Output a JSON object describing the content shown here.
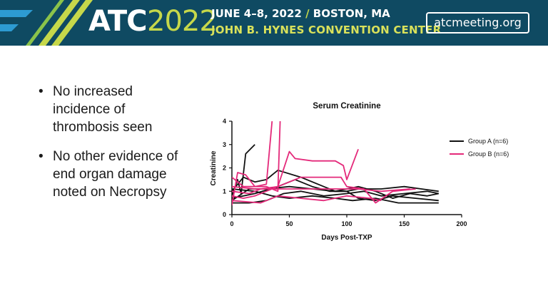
{
  "header": {
    "logo_main": "ATC",
    "logo_year": "2022",
    "dates": "JUNE 4–8, 2022",
    "separator": "/",
    "city": "BOSTON, MA",
    "venue": "JOHN B. HYNES CONVENTION CENTER",
    "url": "atcmeeting.org",
    "colors": {
      "banner": "#0f4a62",
      "accent": "#c6d84a",
      "stripe": "#2d9bd2"
    }
  },
  "bullets": [
    {
      "text": "No increased incidence of thrombosis seen"
    },
    {
      "text": "No other evidence of end organ damage noted on Necropsy"
    }
  ],
  "chart_data": {
    "type": "line",
    "title": "Serum Creatinine",
    "xlabel": "Days Post-TXP",
    "ylabel": "Creatinine",
    "xlim": [
      0,
      200
    ],
    "ylim": [
      0,
      4
    ],
    "xticks": [
      "0",
      "50",
      "100",
      "150",
      "200"
    ],
    "yticks": [
      "0",
      "1",
      "2",
      "3",
      "4"
    ],
    "legend_position": "right",
    "series": [
      {
        "name": "Group A (n=6)",
        "color": "#111111",
        "lines": [
          [
            [
              0,
              0.8
            ],
            [
              5,
              1.5
            ],
            [
              8,
              0.9
            ],
            [
              12,
              2.6
            ],
            [
              20,
              3.0
            ]
          ],
          [
            [
              0,
              1.0
            ],
            [
              10,
              1.6
            ],
            [
              20,
              1.4
            ],
            [
              30,
              1.5
            ],
            [
              40,
              1.9
            ],
            [
              60,
              1.6
            ],
            [
              75,
              1.3
            ],
            [
              90,
              1.0
            ],
            [
              100,
              1.0
            ],
            [
              110,
              1.1
            ],
            [
              130,
              1.1
            ],
            [
              150,
              1.2
            ],
            [
              165,
              1.1
            ],
            [
              180,
              1.0
            ]
          ],
          [
            [
              0,
              0.7
            ],
            [
              20,
              0.9
            ],
            [
              40,
              1.2
            ],
            [
              55,
              1.5
            ],
            [
              70,
              1.2
            ],
            [
              85,
              1.0
            ],
            [
              100,
              1.0
            ],
            [
              110,
              0.7
            ],
            [
              125,
              0.6
            ],
            [
              140,
              0.8
            ],
            [
              160,
              0.7
            ],
            [
              180,
              0.6
            ]
          ],
          [
            [
              0,
              0.5
            ],
            [
              15,
              0.5
            ],
            [
              30,
              0.6
            ],
            [
              45,
              0.9
            ],
            [
              60,
              1.0
            ],
            [
              80,
              0.8
            ],
            [
              100,
              0.9
            ],
            [
              115,
              1.0
            ],
            [
              130,
              0.8
            ],
            [
              150,
              0.9
            ],
            [
              170,
              1.0
            ],
            [
              180,
              0.9
            ]
          ],
          [
            [
              0,
              1.1
            ],
            [
              20,
              1.0
            ],
            [
              35,
              0.8
            ],
            [
              50,
              0.7
            ],
            [
              70,
              0.8
            ],
            [
              90,
              0.7
            ],
            [
              105,
              0.6
            ],
            [
              125,
              0.7
            ],
            [
              145,
              0.5
            ],
            [
              160,
              0.5
            ],
            [
              180,
              0.5
            ]
          ],
          [
            [
              0,
              0.6
            ],
            [
              15,
              1.1
            ],
            [
              30,
              1.1
            ],
            [
              50,
              1.2
            ],
            [
              70,
              1.1
            ],
            [
              90,
              1.0
            ],
            [
              110,
              1.2
            ],
            [
              125,
              1.0
            ],
            [
              140,
              0.7
            ],
            [
              155,
              0.9
            ],
            [
              170,
              0.8
            ],
            [
              180,
              0.9
            ]
          ]
        ]
      },
      {
        "name": "Group B (n=6)",
        "color": "#e4297a",
        "lines": [
          [
            [
              0,
              0.4
            ],
            [
              5,
              1.8
            ],
            [
              12,
              1.7
            ],
            [
              20,
              1.2
            ],
            [
              30,
              1.3
            ],
            [
              35,
              4.0
            ]
          ],
          [
            [
              0,
              1.6
            ],
            [
              10,
              1.2
            ],
            [
              30,
              1.2
            ],
            [
              40,
              1.0
            ],
            [
              42,
              4.0
            ]
          ],
          [
            [
              0,
              1.0
            ],
            [
              15,
              0.9
            ],
            [
              25,
              1.1
            ],
            [
              40,
              1.2
            ],
            [
              50,
              2.7
            ],
            [
              55,
              2.4
            ],
            [
              70,
              2.3
            ],
            [
              90,
              2.3
            ],
            [
              97,
              2.1
            ],
            [
              100,
              1.5
            ],
            [
              110,
              2.8
            ]
          ],
          [
            [
              0,
              0.8
            ],
            [
              10,
              0.7
            ],
            [
              20,
              0.8
            ],
            [
              40,
              1.2
            ],
            [
              60,
              1.6
            ],
            [
              80,
              1.6
            ],
            [
              95,
              1.6
            ],
            [
              100,
              1.2
            ],
            [
              115,
              1.1
            ],
            [
              125,
              0.5
            ],
            [
              140,
              1.0
            ],
            [
              160,
              1.1
            ]
          ],
          [
            [
              0,
              1.2
            ],
            [
              20,
              1.1
            ],
            [
              40,
              1.1
            ],
            [
              60,
              1.1
            ],
            [
              90,
              1.1
            ],
            [
              110,
              1.1
            ],
            [
              130,
              1.0
            ],
            [
              155,
              1.1
            ]
          ],
          [
            [
              0,
              0.6
            ],
            [
              25,
              0.5
            ],
            [
              40,
              0.8
            ],
            [
              60,
              0.7
            ],
            [
              80,
              0.6
            ],
            [
              100,
              0.8
            ],
            [
              120,
              0.7
            ],
            [
              130,
              0.6
            ]
          ]
        ]
      }
    ]
  }
}
